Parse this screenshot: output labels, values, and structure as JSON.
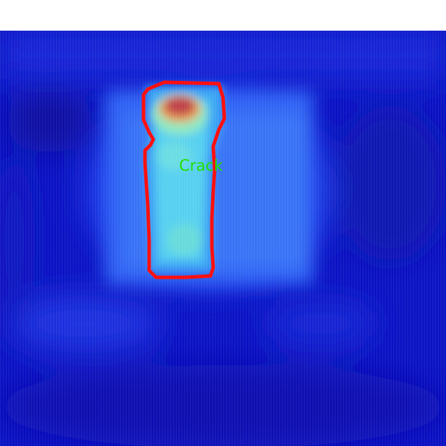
{
  "image": {
    "kind": "thermal heatmap with segmentation overlay",
    "detection": {
      "label": "Crack",
      "outline_color": "#ff1010",
      "label_color": "#22e000"
    },
    "palette": {
      "background": "#0a10c8",
      "cold": "#0818b0",
      "cool": "#1a4cf0",
      "warm": "#3cc8f0",
      "hot": "#c84060"
    }
  }
}
